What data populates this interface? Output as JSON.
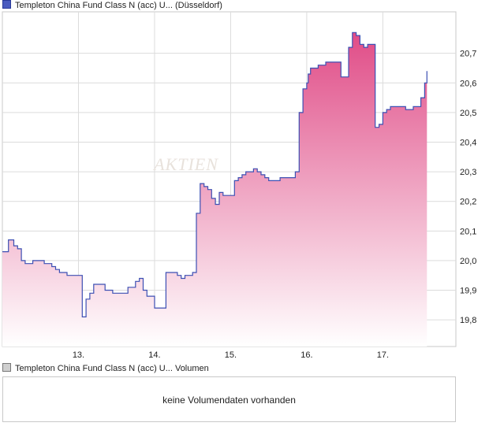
{
  "price_legend": {
    "label": "Templeton China Fund Class N (acc) U... (Düsseldorf)"
  },
  "volume_legend": {
    "label": "Templeton China Fund Class N (acc) U... Volumen"
  },
  "volume_panel": {
    "message": "keine Volumendaten vorhanden"
  },
  "watermark": "AKTIEN",
  "colors": {
    "line": "#3c4fb3",
    "fill_top": "#e04c87",
    "fill_bottom": "#ffffff",
    "grid": "#dcdcdc",
    "frame": "#c8c8c8"
  },
  "chart_data": {
    "type": "area",
    "grid": true,
    "x_tick_labels": [
      "13.",
      "14.",
      "15.",
      "16.",
      "17."
    ],
    "y_tick_labels": [
      "19,8",
      "19,9",
      "20,0",
      "20,1",
      "20,2",
      "20,3",
      "20,4",
      "20,5",
      "20,6",
      "20,7"
    ],
    "y_ticks": [
      19.8,
      19.9,
      20.0,
      20.1,
      20.2,
      20.3,
      20.4,
      20.5,
      20.6,
      20.7
    ],
    "ylim": [
      19.71,
      20.84
    ],
    "xlim": [
      12.0,
      17.96
    ],
    "series": [
      {
        "x": [
          12.0,
          12.05,
          12.08,
          12.1,
          12.15,
          12.2,
          12.25,
          12.3,
          12.35,
          12.4,
          12.45,
          12.5,
          12.55,
          12.6,
          12.65,
          12.7,
          12.75,
          12.8,
          12.85,
          12.9,
          12.95,
          13.0,
          13.05,
          13.07,
          13.1,
          13.15,
          13.2,
          13.25,
          13.3,
          13.35,
          13.4,
          13.45,
          13.5,
          13.55,
          13.6,
          13.65,
          13.7,
          13.75,
          13.8,
          13.85,
          13.9,
          13.95,
          14.0,
          14.05,
          14.1,
          14.15,
          14.2,
          14.25,
          14.3,
          14.35,
          14.4,
          14.45,
          14.5,
          14.55,
          14.6,
          14.65,
          14.7,
          14.75,
          14.8,
          14.85,
          14.9,
          14.95,
          15.0,
          15.05,
          15.1,
          15.15,
          15.2,
          15.25,
          15.3,
          15.35,
          15.4,
          15.45,
          15.5,
          15.55,
          15.6,
          15.65,
          15.7,
          15.75,
          15.8,
          15.85,
          15.9,
          15.95,
          16.0,
          16.02,
          16.05,
          16.1,
          16.15,
          16.2,
          16.25,
          16.3,
          16.35,
          16.4,
          16.45,
          16.5,
          16.55,
          16.6,
          16.65,
          16.7,
          16.75,
          16.8,
          16.85,
          16.9,
          16.95,
          17.0,
          17.05,
          17.1,
          17.15,
          17.2,
          17.25,
          17.3,
          17.35,
          17.4,
          17.45,
          17.5,
          17.55,
          17.58
        ],
        "values": [
          20.03,
          20.03,
          20.07,
          20.07,
          20.05,
          20.04,
          20.0,
          19.99,
          19.99,
          20.0,
          20.0,
          20.0,
          19.99,
          19.99,
          19.98,
          19.97,
          19.96,
          19.96,
          19.95,
          19.95,
          19.95,
          19.95,
          19.81,
          19.81,
          19.87,
          19.89,
          19.92,
          19.92,
          19.92,
          19.9,
          19.9,
          19.89,
          19.89,
          19.89,
          19.89,
          19.91,
          19.91,
          19.93,
          19.94,
          19.9,
          19.88,
          19.88,
          19.84,
          19.84,
          19.84,
          19.96,
          19.96,
          19.96,
          19.95,
          19.94,
          19.95,
          19.95,
          19.96,
          20.16,
          20.26,
          20.25,
          20.24,
          20.21,
          20.19,
          20.23,
          20.22,
          20.22,
          20.22,
          20.27,
          20.28,
          20.29,
          20.3,
          20.3,
          20.31,
          20.3,
          20.29,
          20.28,
          20.27,
          20.27,
          20.27,
          20.28,
          20.28,
          20.28,
          20.28,
          20.3,
          20.5,
          20.58,
          20.6,
          20.63,
          20.65,
          20.65,
          20.66,
          20.66,
          20.67,
          20.67,
          20.67,
          20.67,
          20.62,
          20.62,
          20.72,
          20.77,
          20.76,
          20.73,
          20.72,
          20.73,
          20.73,
          20.45,
          20.46,
          20.5,
          20.51,
          20.52,
          20.52,
          20.52,
          20.52,
          20.51,
          20.51,
          20.52,
          20.52,
          20.55,
          20.6,
          20.64
        ]
      }
    ]
  }
}
